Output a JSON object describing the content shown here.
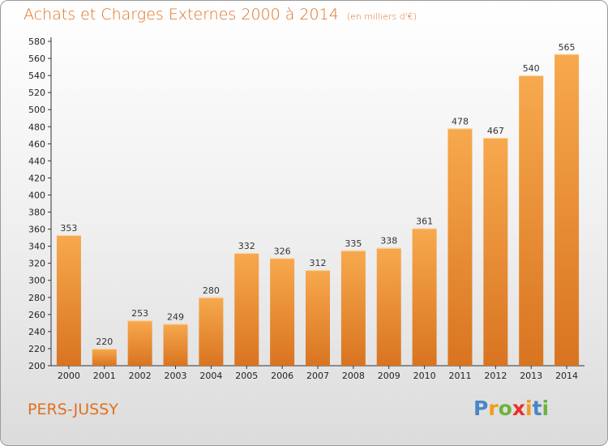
{
  "title": "Achats et Charges Externes 2000 à 2014",
  "subtitle": "(en milliers d'€)",
  "place": "PERS-JUSSY",
  "logo": {
    "text": "Proxiti",
    "letters": [
      "P",
      "r",
      "o",
      "x",
      "i",
      "t",
      "i"
    ],
    "colors": [
      "#4a86c8",
      "#f39a1e",
      "#6cb33e",
      "#e8302a",
      "#f39a1e",
      "#4a86c8",
      "#6cb33e"
    ]
  },
  "colors": {
    "bar_light": "#f7a94e",
    "bar_dark": "#d97421",
    "accent": "#e07020"
  },
  "chart_data": {
    "type": "bar",
    "title": "Achats et Charges Externes 2000 à 2014",
    "categories": [
      "2000",
      "2001",
      "2002",
      "2003",
      "2004",
      "2005",
      "2006",
      "2007",
      "2008",
      "2009",
      "2010",
      "2011",
      "2012",
      "2013",
      "2014"
    ],
    "values": [
      353,
      220,
      253,
      249,
      280,
      332,
      326,
      312,
      335,
      338,
      361,
      478,
      467,
      540,
      565
    ],
    "ylim": [
      200,
      580
    ],
    "yticks": [
      200,
      220,
      240,
      260,
      280,
      300,
      320,
      340,
      360,
      380,
      400,
      420,
      440,
      460,
      480,
      500,
      520,
      540,
      560,
      580
    ],
    "grid": false,
    "xlabel": "",
    "ylabel": ""
  }
}
